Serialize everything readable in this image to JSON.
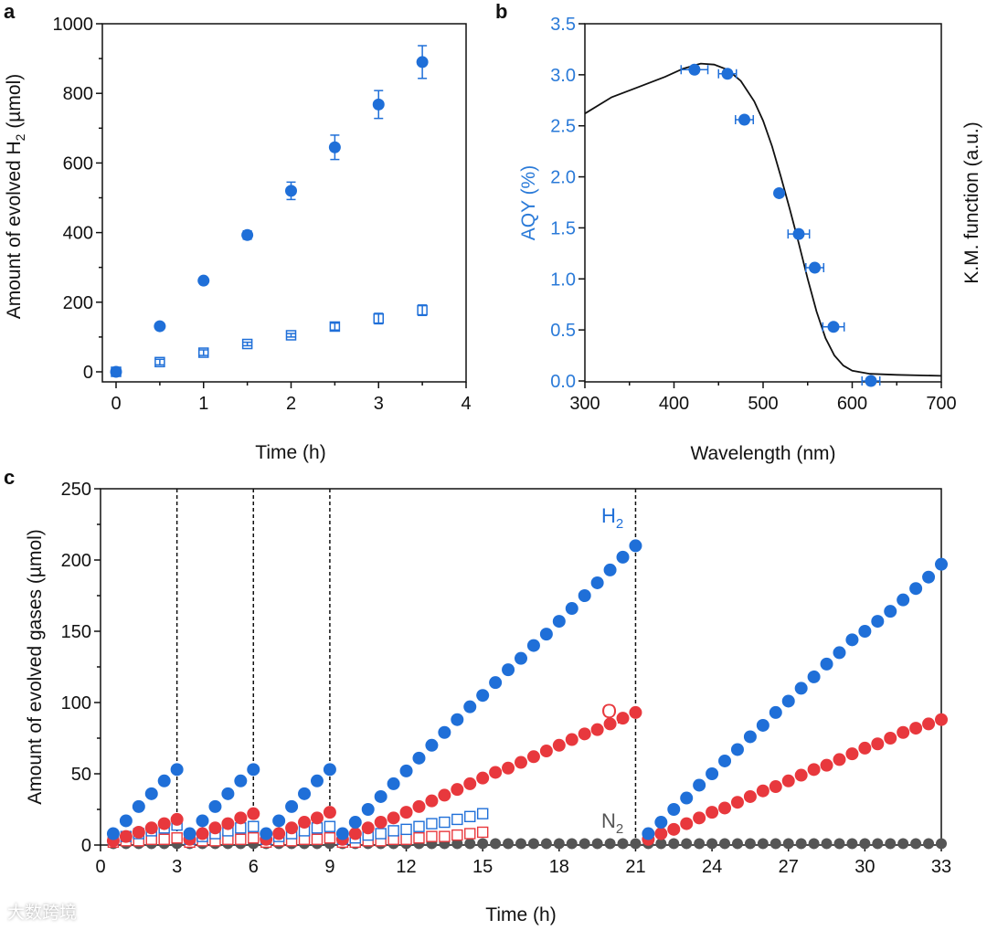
{
  "colors": {
    "blue": "#1f6fd8",
    "red": "#e8383d",
    "gray": "#555555",
    "curve": "#111111",
    "axis_blue": "#2a7ad8"
  },
  "watermark": "大数跨境",
  "chart_data": [
    {
      "panel": "a",
      "type": "scatter",
      "xlabel": "Time (h)",
      "ylabel_pre": "Amount of evolved H",
      "ylabel_sub": "2",
      "ylabel_post": " (µmol)",
      "xlim": [
        0,
        4
      ],
      "ylim": [
        0,
        1000
      ],
      "xticks": [
        0,
        1,
        2,
        3,
        4
      ],
      "yticks": [
        0,
        200,
        400,
        600,
        800,
        1000
      ],
      "series": [
        {
          "name": "filled",
          "marker": "filled-circle",
          "x": [
            0,
            0.5,
            1,
            1.5,
            2,
            2.5,
            3,
            3.5
          ],
          "y": [
            0,
            131,
            262,
            393,
            520,
            645,
            768,
            890
          ],
          "err": [
            0,
            0,
            0,
            12,
            25,
            35,
            40,
            47
          ]
        },
        {
          "name": "open",
          "marker": "open-square",
          "x": [
            0,
            0.5,
            1,
            1.5,
            2,
            2.5,
            3,
            3.5
          ],
          "y": [
            0,
            28,
            55,
            80,
            105,
            130,
            153,
            177
          ],
          "err": [
            0,
            8,
            8,
            5,
            5,
            10,
            15,
            15
          ]
        }
      ]
    },
    {
      "panel": "b",
      "type": "scatter+line",
      "xlabel": "Wavelength (nm)",
      "ylabel": "AQY (%)",
      "ylabel_right": "K.M. function (a.u.)",
      "xlim": [
        300,
        700
      ],
      "ylim": [
        0,
        3.5
      ],
      "xticks": [
        300,
        400,
        500,
        600,
        700
      ],
      "yticks": [
        "0.0",
        "0.5",
        "1.0",
        "1.5",
        "2.0",
        "2.5",
        "3.0",
        "3.5"
      ],
      "aqy": {
        "x": [
          423,
          460,
          479,
          518,
          540,
          558,
          579,
          621
        ],
        "y": [
          3.05,
          3.01,
          2.56,
          1.84,
          1.44,
          1.11,
          0.53,
          0.0
        ],
        "xerr": [
          15,
          10,
          10,
          0,
          12,
          10,
          12,
          10
        ]
      },
      "km_curve": {
        "x": [
          300,
          330,
          360,
          390,
          410,
          430,
          445,
          460,
          475,
          490,
          500,
          510,
          520,
          530,
          540,
          550,
          560,
          570,
          580,
          590,
          600,
          620,
          650,
          700
        ],
        "y": [
          2.62,
          2.78,
          2.88,
          2.98,
          3.06,
          3.11,
          3.1,
          3.05,
          2.94,
          2.74,
          2.55,
          2.3,
          2.0,
          1.68,
          1.35,
          1.0,
          0.68,
          0.42,
          0.25,
          0.15,
          0.1,
          0.07,
          0.06,
          0.05
        ]
      }
    },
    {
      "panel": "c",
      "type": "scatter",
      "xlabel": "Time (h)",
      "ylabel": "Amount of evolved gases (µmol)",
      "xlim": [
        0,
        33
      ],
      "ylim": [
        0,
        250
      ],
      "xticks": [
        0,
        3,
        6,
        9,
        12,
        15,
        18,
        21,
        24,
        27,
        30,
        33
      ],
      "yticks": [
        0,
        50,
        100,
        150,
        200,
        250
      ],
      "vlines": [
        3,
        6,
        9,
        21
      ],
      "labels": [
        {
          "main": "H",
          "sub": "2"
        },
        {
          "main": "O",
          "sub": "2"
        },
        {
          "main": "N",
          "sub": "2"
        }
      ],
      "series": [
        {
          "name": "H2",
          "marker": "filled-circle",
          "color": "blue",
          "segments": [
            {
              "x0": 0.5,
              "dx": 0.5,
              "y": [
                8,
                17,
                27,
                36,
                45,
                53
              ]
            },
            {
              "x0": 3.5,
              "dx": 0.5,
              "y": [
                8,
                17,
                27,
                36,
                45,
                53
              ]
            },
            {
              "x0": 6.5,
              "dx": 0.5,
              "y": [
                8,
                17,
                27,
                36,
                45,
                53
              ]
            },
            {
              "x0": 9.5,
              "dx": 0.5,
              "y": [
                8,
                16,
                25,
                34,
                43,
                52,
                61,
                70,
                79,
                88,
                97,
                105,
                114,
                123,
                131,
                140,
                148,
                157,
                166,
                175,
                184,
                193,
                202,
                210
              ]
            },
            {
              "x0": 21.5,
              "dx": 0.5,
              "y": [
                8,
                16,
                25,
                33,
                42,
                50,
                59,
                67,
                76,
                84,
                93,
                101,
                110,
                118,
                127,
                135,
                144,
                150,
                157,
                164,
                172,
                180,
                188,
                197
              ]
            }
          ]
        },
        {
          "name": "O2",
          "marker": "filled-circle",
          "color": "red",
          "segments": [
            {
              "x0": 0.5,
              "dx": 0.5,
              "y": [
                3,
                6,
                9,
                12,
                15,
                18
              ]
            },
            {
              "x0": 3.5,
              "dx": 0.5,
              "y": [
                4,
                8,
                12,
                15,
                19,
                22
              ]
            },
            {
              "x0": 6.5,
              "dx": 0.5,
              "y": [
                4,
                8,
                12,
                16,
                19,
                23
              ]
            },
            {
              "x0": 9.5,
              "dx": 0.5,
              "y": [
                4,
                8,
                12,
                16,
                19,
                23,
                27,
                31,
                35,
                39,
                43,
                47,
                51,
                54,
                58,
                62,
                66,
                70,
                74,
                78,
                81,
                85,
                89,
                93
              ]
            },
            {
              "x0": 21.5,
              "dx": 0.5,
              "y": [
                4,
                8,
                11,
                15,
                19,
                23,
                26,
                30,
                34,
                38,
                41,
                45,
                49,
                53,
                56,
                60,
                64,
                68,
                71,
                75,
                79,
                82,
                85,
                88
              ]
            }
          ]
        },
        {
          "name": "H2-open",
          "marker": "open-square",
          "color": "blue",
          "segments": [
            {
              "x0": 0.5,
              "dx": 0.5,
              "y": [
                4,
                6,
                8,
                10,
                12,
                14
              ]
            },
            {
              "x0": 3.5,
              "dx": 0.5,
              "y": [
                4,
                6,
                8,
                10,
                12,
                13
              ]
            },
            {
              "x0": 6.5,
              "dx": 0.5,
              "y": [
                4,
                6,
                8,
                10,
                12,
                13
              ]
            },
            {
              "x0": 9.5,
              "dx": 0.5,
              "y": [
                4,
                5,
                7,
                8,
                10,
                11,
                13,
                15,
                16,
                18,
                20,
                22
              ]
            }
          ]
        },
        {
          "name": "O2-open",
          "marker": "open-square",
          "color": "red",
          "segments": [
            {
              "x0": 0.5,
              "dx": 0.5,
              "y": [
                2,
                3,
                3,
                4,
                4,
                5
              ]
            },
            {
              "x0": 3.5,
              "dx": 0.5,
              "y": [
                2,
                3,
                3,
                4,
                4,
                5
              ]
            },
            {
              "x0": 6.5,
              "dx": 0.5,
              "y": [
                2,
                3,
                3,
                4,
                4,
                5
              ]
            },
            {
              "x0": 9.5,
              "dx": 0.5,
              "y": [
                2,
                2,
                3,
                3,
                4,
                4,
                5,
                6,
                6,
                7,
                8,
                9
              ]
            }
          ]
        },
        {
          "name": "N2",
          "marker": "filled-circle",
          "color": "gray",
          "segments": [
            {
              "x0": 0.5,
              "dx": 0.5,
              "y": [
                1,
                1,
                1,
                1,
                1,
                1,
                1,
                1,
                1,
                1,
                1,
                1,
                1,
                1,
                1,
                1,
                1,
                1,
                1,
                1,
                1,
                1,
                1,
                1,
                1,
                1,
                1,
                1,
                1,
                1,
                1,
                1,
                1,
                1,
                1,
                1,
                1,
                1,
                1,
                1,
                1,
                1,
                1,
                1,
                1,
                1,
                1,
                1,
                1,
                1,
                1,
                1,
                1,
                1,
                1,
                1,
                1,
                1,
                1,
                1,
                1,
                1,
                1,
                1,
                1,
                1
              ]
            }
          ]
        }
      ]
    }
  ],
  "panel_letters": [
    "a",
    "b",
    "c"
  ]
}
